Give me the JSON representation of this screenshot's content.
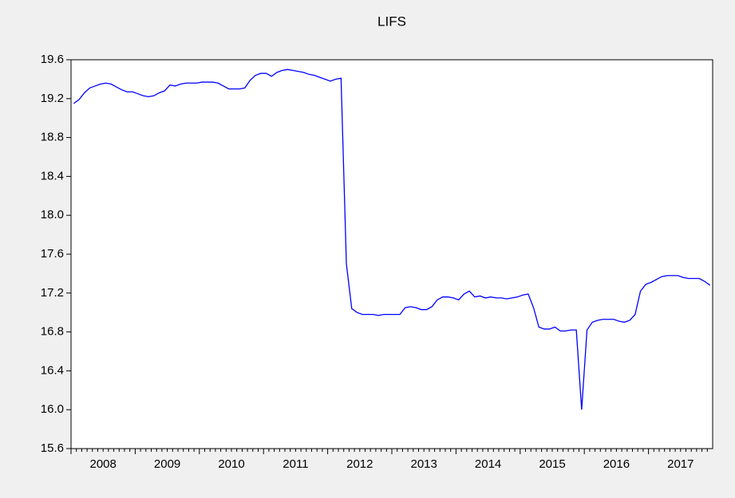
{
  "chart_data": {
    "type": "line",
    "title": "LIFS",
    "categories": [
      "2008",
      null,
      null,
      null,
      null,
      null,
      null,
      null,
      null,
      null,
      null,
      null,
      "2009",
      null,
      null,
      null,
      null,
      null,
      null,
      null,
      null,
      null,
      null,
      null,
      "2010",
      null,
      null,
      null,
      null,
      null,
      null,
      null,
      null,
      null,
      null,
      null,
      "2011",
      null,
      null,
      null,
      null,
      null,
      null,
      null,
      null,
      null,
      null,
      null,
      "2012",
      null,
      null,
      null,
      null,
      null,
      null,
      null,
      null,
      null,
      null,
      null,
      "2013",
      null,
      null,
      null,
      null,
      null,
      null,
      null,
      null,
      null,
      null,
      null,
      "2014",
      null,
      null,
      null,
      null,
      null,
      null,
      null,
      null,
      null,
      null,
      null,
      "2015",
      null,
      null,
      null,
      null,
      null,
      null,
      null,
      null,
      null,
      null,
      null,
      "2016",
      null,
      null,
      null,
      null,
      null,
      null,
      null,
      null,
      null,
      null,
      null,
      "2017",
      null,
      null,
      null,
      null,
      null,
      null,
      null,
      null,
      null,
      null,
      null
    ],
    "values": [
      19.15,
      19.19,
      19.26,
      19.31,
      19.33,
      19.35,
      19.36,
      19.35,
      19.32,
      19.29,
      19.27,
      19.27,
      19.25,
      19.23,
      19.22,
      19.23,
      19.26,
      19.28,
      19.34,
      19.33,
      19.35,
      19.36,
      19.36,
      19.36,
      19.37,
      19.37,
      19.37,
      19.36,
      19.33,
      19.3,
      19.3,
      19.3,
      19.31,
      19.39,
      19.44,
      19.46,
      19.46,
      19.43,
      19.47,
      19.49,
      19.5,
      19.49,
      19.48,
      19.47,
      19.45,
      19.44,
      19.42,
      19.4,
      19.38,
      19.4,
      19.41,
      17.5,
      17.04,
      17.0,
      16.98,
      16.98,
      16.98,
      16.97,
      16.98,
      16.98,
      16.98,
      16.98,
      17.05,
      17.06,
      17.05,
      17.03,
      17.03,
      17.06,
      17.13,
      17.16,
      17.16,
      17.15,
      17.13,
      17.19,
      17.22,
      17.16,
      17.17,
      17.15,
      17.16,
      17.15,
      17.15,
      17.14,
      17.15,
      17.16,
      17.18,
      17.19,
      17.05,
      16.85,
      16.83,
      16.83,
      16.85,
      16.81,
      16.81,
      16.82,
      16.82,
      16.0,
      16.82,
      16.9,
      16.92,
      16.93,
      16.93,
      16.93,
      16.91,
      16.9,
      16.92,
      16.98,
      17.22,
      17.29,
      17.31,
      17.34,
      17.37,
      17.38,
      17.38,
      17.38,
      17.36,
      17.35,
      17.35,
      17.35,
      17.32,
      17.28
    ],
    "color": "#0000ff",
    "ylim": [
      15.6,
      19.6
    ],
    "yticks": [
      {
        "value": 15.6,
        "label": "15.6"
      },
      {
        "value": 16,
        "label": "16.0"
      },
      {
        "value": 16.4,
        "label": "16.4"
      },
      {
        "value": 16.8,
        "label": "16.8"
      },
      {
        "value": 17.2,
        "label": "17.2"
      },
      {
        "value": 17.6,
        "label": "17.6"
      },
      {
        "value": 18,
        "label": "18.0"
      },
      {
        "value": 18.4,
        "label": "18.4"
      },
      {
        "value": 18.8,
        "label": "18.8"
      },
      {
        "value": 19.2,
        "label": "19.2"
      },
      {
        "value": 19.6,
        "label": "19.6"
      }
    ],
    "grid": false
  }
}
